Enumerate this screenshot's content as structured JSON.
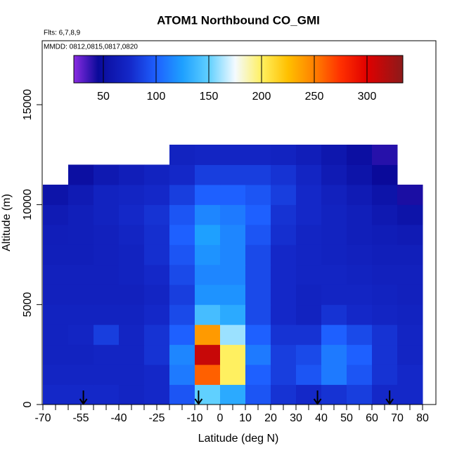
{
  "chart_data": {
    "type": "heatmap",
    "title": "ATOM1 Northbound CO_GMI",
    "subtitle": "Flts: 6,7,8,9",
    "annotation": "MMDD: 0812,0815,0817,0820",
    "x_label": "Latitude (deg N)",
    "y_label": "Altitude (m)",
    "xlim": [
      -70,
      85
    ],
    "ylim": [
      0,
      18200
    ],
    "xticks": [
      -70,
      -55,
      -40,
      -25,
      -10,
      0,
      10,
      20,
      30,
      40,
      50,
      60,
      70,
      80
    ],
    "xminorticks": [
      -65,
      -60,
      -50,
      -45,
      -35,
      -30,
      -20,
      -15,
      -5,
      5,
      15,
      25,
      35,
      45,
      55,
      65,
      75
    ],
    "yticks": [
      0,
      5000,
      10000,
      15000
    ],
    "x_edges": [
      -70,
      -60,
      -50,
      -40,
      -30,
      -20,
      -10,
      0,
      10,
      20,
      30,
      40,
      50,
      60,
      70,
      80
    ],
    "y_edges": [
      0,
      1000,
      2000,
      3000,
      4000,
      5000,
      6000,
      7000,
      8000,
      9000,
      10000,
      11000,
      12000,
      13000
    ],
    "z": [
      [
        75,
        75,
        75,
        72,
        75,
        95,
        150,
        130,
        95,
        80,
        75,
        80,
        85,
        75,
        75
      ],
      [
        72,
        72,
        72,
        72,
        75,
        110,
        260,
        200,
        100,
        85,
        95,
        110,
        95,
        80,
        75
      ],
      [
        70,
        70,
        72,
        72,
        80,
        115,
        310,
        200,
        110,
        85,
        90,
        110,
        100,
        80,
        72
      ],
      [
        70,
        72,
        85,
        72,
        80,
        100,
        240,
        160,
        100,
        80,
        80,
        100,
        90,
        80,
        72
      ],
      [
        70,
        70,
        70,
        70,
        75,
        90,
        140,
        130,
        90,
        75,
        70,
        80,
        75,
        72,
        70
      ],
      [
        68,
        68,
        68,
        68,
        72,
        85,
        120,
        120,
        90,
        75,
        70,
        72,
        72,
        70,
        68
      ],
      [
        68,
        68,
        68,
        70,
        75,
        90,
        115,
        115,
        90,
        75,
        72,
        72,
        70,
        68,
        68
      ],
      [
        66,
        66,
        68,
        70,
        78,
        95,
        120,
        115,
        90,
        75,
        72,
        70,
        68,
        66,
        66
      ],
      [
        65,
        66,
        68,
        72,
        78,
        100,
        125,
        115,
        95,
        78,
        72,
        70,
        66,
        64,
        62
      ],
      [
        62,
        66,
        70,
        75,
        80,
        95,
        115,
        110,
        100,
        80,
        75,
        70,
        66,
        60,
        55
      ],
      [
        55,
        62,
        70,
        72,
        75,
        85,
        100,
        100,
        95,
        85,
        75,
        68,
        62,
        55,
        42
      ],
      [
        null,
        50,
        60,
        65,
        70,
        75,
        85,
        85,
        85,
        80,
        72,
        62,
        55,
        45,
        null
      ],
      [
        null,
        null,
        null,
        null,
        null,
        70,
        72,
        72,
        72,
        70,
        65,
        58,
        50,
        40,
        null
      ]
    ],
    "colorbar_lim": [
      22,
      334
    ],
    "colorbar_ticks": [
      50,
      100,
      150,
      200,
      250,
      300
    ],
    "colorscale": [
      [
        22,
        "#8a2be2"
      ],
      [
        45,
        "#0a0a9a"
      ],
      [
        75,
        "#1428c8"
      ],
      [
        100,
        "#1e60ff"
      ],
      [
        125,
        "#1ea0ff"
      ],
      [
        150,
        "#60d0ff"
      ],
      [
        175,
        "#f4faff"
      ],
      [
        200,
        "#fff060"
      ],
      [
        225,
        "#ffc000"
      ],
      [
        250,
        "#ff8000"
      ],
      [
        275,
        "#ff3000"
      ],
      [
        300,
        "#e00000"
      ],
      [
        334,
        "#8c1a1a"
      ]
    ],
    "arrows_x": [
      -54,
      -8.5,
      38.5,
      67
    ]
  }
}
